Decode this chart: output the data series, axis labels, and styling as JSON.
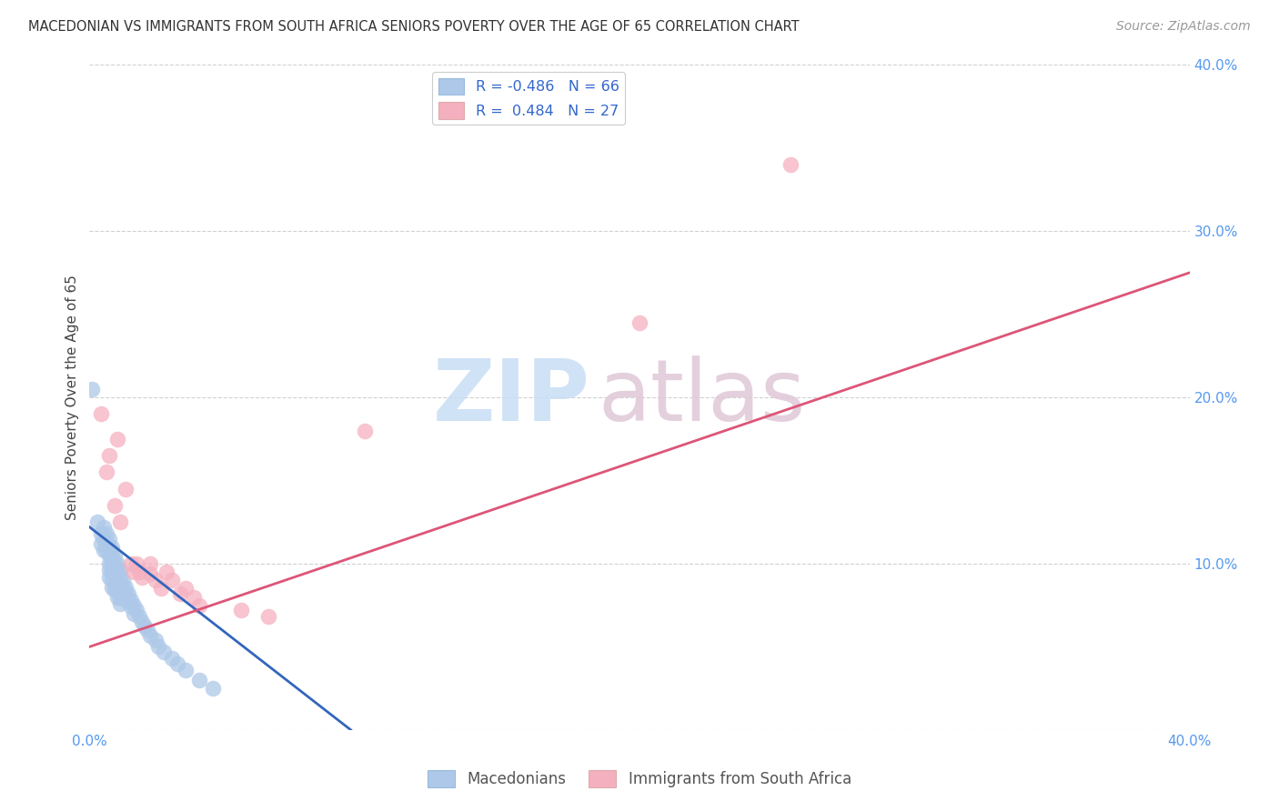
{
  "title": "MACEDONIAN VS IMMIGRANTS FROM SOUTH AFRICA SENIORS POVERTY OVER THE AGE OF 65 CORRELATION CHART",
  "source": "Source: ZipAtlas.com",
  "ylabel": "Seniors Poverty Over the Age of 65",
  "xlim": [
    0.0,
    0.4
  ],
  "ylim": [
    0.0,
    0.4
  ],
  "legend_r_blue": "R = -0.486",
  "legend_n_blue": "N = 66",
  "legend_r_pink": "R =  0.484",
  "legend_n_pink": "N = 27",
  "legend_label_blue": "Macedonians",
  "legend_label_pink": "Immigrants from South Africa",
  "blue_color": "#adc8e8",
  "pink_color": "#f5b0c0",
  "blue_line_color": "#3366bb",
  "pink_line_color": "#dd5577",
  "blue_scatter": [
    [
      0.001,
      0.205
    ],
    [
      0.003,
      0.125
    ],
    [
      0.004,
      0.118
    ],
    [
      0.004,
      0.112
    ],
    [
      0.005,
      0.122
    ],
    [
      0.005,
      0.115
    ],
    [
      0.005,
      0.108
    ],
    [
      0.006,
      0.118
    ],
    [
      0.006,
      0.112
    ],
    [
      0.006,
      0.108
    ],
    [
      0.007,
      0.115
    ],
    [
      0.007,
      0.11
    ],
    [
      0.007,
      0.105
    ],
    [
      0.007,
      0.1
    ],
    [
      0.007,
      0.096
    ],
    [
      0.007,
      0.092
    ],
    [
      0.008,
      0.11
    ],
    [
      0.008,
      0.105
    ],
    [
      0.008,
      0.1
    ],
    [
      0.008,
      0.095
    ],
    [
      0.008,
      0.09
    ],
    [
      0.008,
      0.086
    ],
    [
      0.009,
      0.105
    ],
    [
      0.009,
      0.1
    ],
    [
      0.009,
      0.096
    ],
    [
      0.009,
      0.092
    ],
    [
      0.009,
      0.088
    ],
    [
      0.009,
      0.084
    ],
    [
      0.01,
      0.1
    ],
    [
      0.01,
      0.096
    ],
    [
      0.01,
      0.092
    ],
    [
      0.01,
      0.088
    ],
    [
      0.01,
      0.084
    ],
    [
      0.01,
      0.08
    ],
    [
      0.011,
      0.096
    ],
    [
      0.011,
      0.092
    ],
    [
      0.011,
      0.088
    ],
    [
      0.011,
      0.084
    ],
    [
      0.011,
      0.08
    ],
    [
      0.011,
      0.076
    ],
    [
      0.012,
      0.09
    ],
    [
      0.012,
      0.086
    ],
    [
      0.012,
      0.082
    ],
    [
      0.013,
      0.086
    ],
    [
      0.013,
      0.082
    ],
    [
      0.013,
      0.078
    ],
    [
      0.014,
      0.082
    ],
    [
      0.014,
      0.078
    ],
    [
      0.015,
      0.078
    ],
    [
      0.015,
      0.074
    ],
    [
      0.016,
      0.075
    ],
    [
      0.016,
      0.07
    ],
    [
      0.017,
      0.072
    ],
    [
      0.018,
      0.068
    ],
    [
      0.019,
      0.065
    ],
    [
      0.02,
      0.062
    ],
    [
      0.021,
      0.06
    ],
    [
      0.022,
      0.057
    ],
    [
      0.024,
      0.054
    ],
    [
      0.025,
      0.05
    ],
    [
      0.027,
      0.047
    ],
    [
      0.03,
      0.043
    ],
    [
      0.032,
      0.04
    ],
    [
      0.035,
      0.036
    ],
    [
      0.04,
      0.03
    ],
    [
      0.045,
      0.025
    ]
  ],
  "pink_scatter": [
    [
      0.004,
      0.19
    ],
    [
      0.006,
      0.155
    ],
    [
      0.007,
      0.165
    ],
    [
      0.009,
      0.135
    ],
    [
      0.01,
      0.175
    ],
    [
      0.011,
      0.125
    ],
    [
      0.013,
      0.145
    ],
    [
      0.015,
      0.1
    ],
    [
      0.016,
      0.095
    ],
    [
      0.017,
      0.1
    ],
    [
      0.018,
      0.095
    ],
    [
      0.019,
      0.092
    ],
    [
      0.022,
      0.1
    ],
    [
      0.022,
      0.094
    ],
    [
      0.024,
      0.09
    ],
    [
      0.026,
      0.085
    ],
    [
      0.028,
      0.095
    ],
    [
      0.03,
      0.09
    ],
    [
      0.033,
      0.082
    ],
    [
      0.035,
      0.085
    ],
    [
      0.038,
      0.08
    ],
    [
      0.04,
      0.075
    ],
    [
      0.055,
      0.072
    ],
    [
      0.065,
      0.068
    ],
    [
      0.1,
      0.18
    ],
    [
      0.2,
      0.245
    ],
    [
      0.255,
      0.34
    ]
  ],
  "blue_line_x": [
    0.0,
    0.095
  ],
  "blue_line_y": [
    0.122,
    0.0
  ],
  "pink_line_x": [
    0.0,
    0.4
  ],
  "pink_line_y": [
    0.05,
    0.275
  ]
}
